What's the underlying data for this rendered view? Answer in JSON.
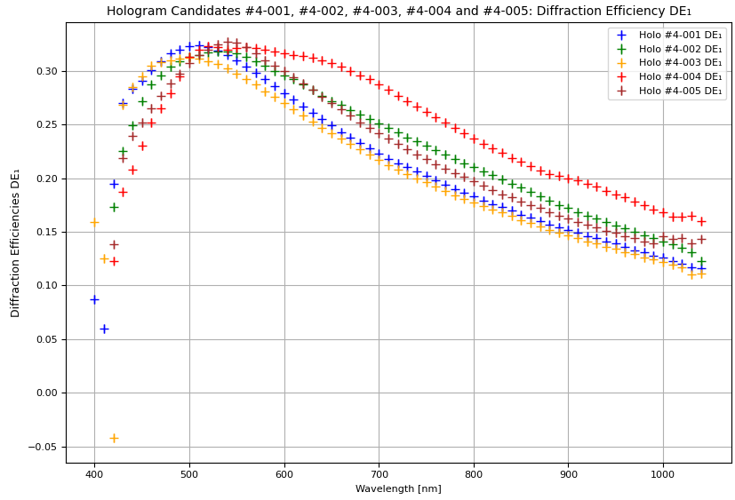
{
  "chart_data": {
    "type": "scatter",
    "title": "Hologram Candidates #4-001, #4-002, #4-003, #4-004 and #4-005: Diffraction Efficiency DE₁",
    "x_label": "Wavelength [nm]",
    "y_label": "Diffraction Efficiencies DE₁",
    "x": [
      400,
      410,
      420,
      430,
      440,
      450,
      460,
      470,
      480,
      490,
      500,
      510,
      520,
      530,
      540,
      550,
      560,
      570,
      580,
      590,
      600,
      610,
      620,
      630,
      640,
      650,
      660,
      670,
      680,
      690,
      700,
      710,
      720,
      730,
      740,
      750,
      760,
      770,
      780,
      790,
      800,
      810,
      820,
      830,
      840,
      850,
      860,
      870,
      880,
      890,
      900,
      910,
      920,
      930,
      940,
      950,
      960,
      970,
      980,
      990,
      1000,
      1010,
      1020,
      1030,
      1040
    ],
    "series": [
      {
        "name": "Holo #4-001 DE₁",
        "color": "#0000ff",
        "marker": "plus",
        "error": 0.004,
        "values": [
          0.087,
          0.06,
          0.195,
          0.27,
          0.283,
          0.291,
          0.301,
          0.309,
          0.316,
          0.32,
          0.323,
          0.324,
          0.322,
          0.319,
          0.315,
          0.31,
          0.304,
          0.298,
          0.292,
          0.286,
          0.279,
          0.273,
          0.267,
          0.261,
          0.255,
          0.249,
          0.243,
          0.238,
          0.233,
          0.228,
          0.223,
          0.218,
          0.214,
          0.21,
          0.206,
          0.202,
          0.198,
          0.194,
          0.19,
          0.186,
          0.183,
          0.179,
          0.176,
          0.173,
          0.17,
          0.166,
          0.163,
          0.16,
          0.157,
          0.154,
          0.152,
          0.149,
          0.146,
          0.144,
          0.141,
          0.139,
          0.136,
          0.133,
          0.131,
          0.128,
          0.126,
          0.123,
          0.12,
          0.117,
          0.116
        ]
      },
      {
        "name": "Holo #4-002 DE₁",
        "color": "#008000",
        "marker": "plus",
        "error": 0.004,
        "values": [
          null,
          null,
          0.173,
          0.225,
          0.249,
          0.272,
          0.287,
          0.296,
          0.304,
          0.309,
          0.313,
          0.315,
          0.317,
          0.318,
          0.318,
          0.316,
          0.313,
          0.309,
          0.305,
          0.3,
          0.296,
          0.292,
          0.287,
          0.282,
          0.277,
          0.272,
          0.268,
          0.263,
          0.259,
          0.255,
          0.251,
          0.247,
          0.243,
          0.238,
          0.234,
          0.23,
          0.226,
          0.222,
          0.218,
          0.214,
          0.21,
          0.206,
          0.203,
          0.199,
          0.195,
          0.191,
          0.187,
          0.183,
          0.179,
          0.175,
          0.172,
          0.168,
          0.165,
          0.162,
          0.159,
          0.156,
          0.153,
          0.15,
          0.147,
          0.144,
          0.141,
          0.138,
          0.135,
          0.131,
          0.123
        ]
      },
      {
        "name": "Holo #4-003 DE₁",
        "color": "#ffa500",
        "marker": "plus",
        "error": 0.004,
        "values": [
          0.159,
          0.125,
          -0.042,
          0.268,
          0.285,
          0.295,
          0.305,
          0.308,
          0.31,
          0.311,
          0.312,
          0.311,
          0.309,
          0.306,
          0.302,
          0.297,
          0.292,
          0.287,
          0.281,
          0.276,
          0.27,
          0.264,
          0.258,
          0.253,
          0.247,
          0.242,
          0.237,
          0.232,
          0.227,
          0.222,
          0.217,
          0.212,
          0.208,
          0.204,
          0.2,
          0.196,
          0.192,
          0.188,
          0.184,
          0.181,
          0.177,
          0.174,
          0.171,
          0.168,
          0.165,
          0.161,
          0.158,
          0.155,
          0.152,
          0.149,
          0.147,
          0.144,
          0.141,
          0.139,
          0.136,
          0.134,
          0.131,
          0.129,
          0.126,
          0.124,
          0.122,
          0.119,
          0.117,
          0.11,
          0.111
        ]
      },
      {
        "name": "Holo #4-004 DE₁",
        "color": "#ff0000",
        "marker": "plus",
        "error": 0.004,
        "values": [
          null,
          null,
          0.123,
          0.187,
          0.208,
          0.23,
          0.252,
          0.265,
          0.279,
          0.295,
          0.313,
          0.32,
          0.323,
          0.322,
          0.32,
          0.321,
          0.322,
          0.321,
          0.32,
          0.318,
          0.316,
          0.315,
          0.314,
          0.312,
          0.31,
          0.307,
          0.304,
          0.3,
          0.296,
          0.292,
          0.287,
          0.282,
          0.277,
          0.272,
          0.267,
          0.262,
          0.257,
          0.252,
          0.247,
          0.242,
          0.237,
          0.232,
          0.228,
          0.224,
          0.219,
          0.215,
          0.211,
          0.207,
          0.204,
          0.202,
          0.2,
          0.198,
          0.195,
          0.192,
          0.188,
          0.185,
          0.182,
          0.178,
          0.175,
          0.171,
          0.168,
          0.164,
          0.164,
          0.165,
          0.16
        ]
      },
      {
        "name": "Holo #4-005 DE₁",
        "color": "#a52a2a",
        "marker": "plus",
        "error": 0.004,
        "values": [
          null,
          null,
          0.138,
          0.219,
          0.239,
          0.252,
          0.265,
          0.277,
          0.288,
          0.297,
          0.307,
          0.315,
          0.32,
          0.325,
          0.327,
          0.326,
          0.322,
          0.316,
          0.31,
          0.305,
          0.3,
          0.294,
          0.288,
          0.282,
          0.276,
          0.27,
          0.264,
          0.258,
          0.252,
          0.247,
          0.242,
          0.237,
          0.232,
          0.227,
          0.222,
          0.218,
          0.213,
          0.209,
          0.205,
          0.201,
          0.197,
          0.193,
          0.189,
          0.185,
          0.182,
          0.178,
          0.175,
          0.172,
          0.168,
          0.165,
          0.162,
          0.159,
          0.157,
          0.154,
          0.151,
          0.149,
          0.146,
          0.144,
          0.141,
          0.139,
          0.146,
          0.143,
          0.144,
          0.139,
          0.143
        ]
      }
    ],
    "xlim": [
      370,
      1072
    ],
    "ylim": [
      -0.065,
      0.345
    ],
    "xticks": [
      400,
      500,
      600,
      700,
      800,
      900,
      1000
    ],
    "yticks": [
      {
        "value": -0.05,
        "label": "−0.05"
      },
      {
        "value": 0.0,
        "label": "0.00"
      },
      {
        "value": 0.05,
        "label": "0.05"
      },
      {
        "value": 0.1,
        "label": "0.10"
      },
      {
        "value": 0.15,
        "label": "0.15"
      },
      {
        "value": 0.2,
        "label": "0.20"
      },
      {
        "value": 0.25,
        "label": "0.25"
      },
      {
        "value": 0.3,
        "label": "0.30"
      }
    ],
    "grid": true,
    "legend": "upper right"
  }
}
